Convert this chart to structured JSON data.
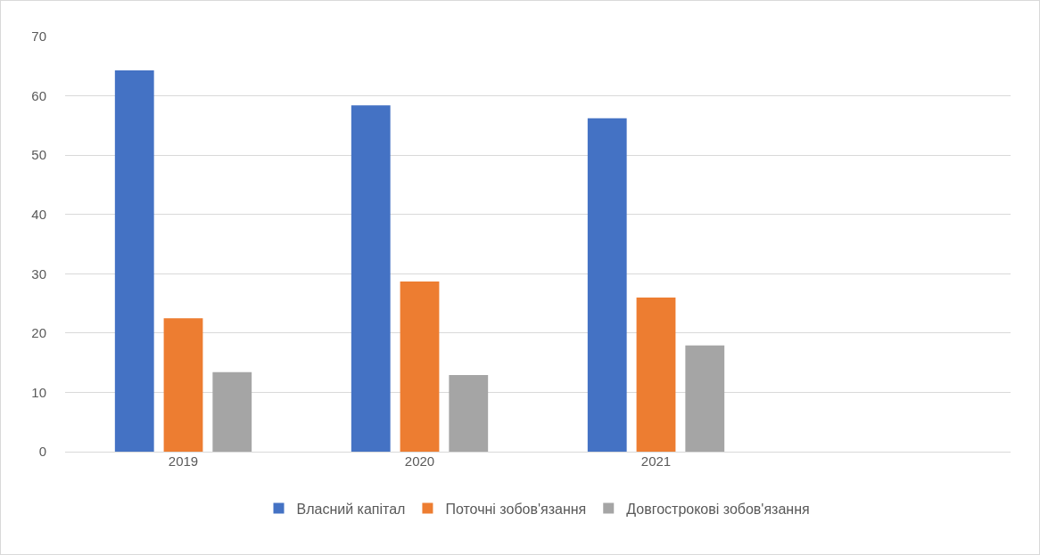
{
  "chart_data": {
    "type": "bar",
    "categories": [
      "2019",
      "2020",
      "2021",
      null
    ],
    "series": [
      {
        "name": "Власний капітал",
        "color": "#4472c4",
        "values": [
          64.3,
          58.4,
          56.2,
          null
        ]
      },
      {
        "name": "Поточні зобов'язання",
        "color": "#ed7d31",
        "values": [
          22.5,
          28.7,
          26.0,
          null
        ]
      },
      {
        "name": "Довгострокові зобов'язання",
        "color": "#a5a5a5",
        "values": [
          13.4,
          12.9,
          17.9,
          null
        ]
      }
    ],
    "ylim": [
      0,
      70
    ],
    "yticks": [
      0,
      10,
      20,
      30,
      40,
      50,
      60,
      70
    ],
    "grid": "y",
    "legend": "bottom"
  }
}
